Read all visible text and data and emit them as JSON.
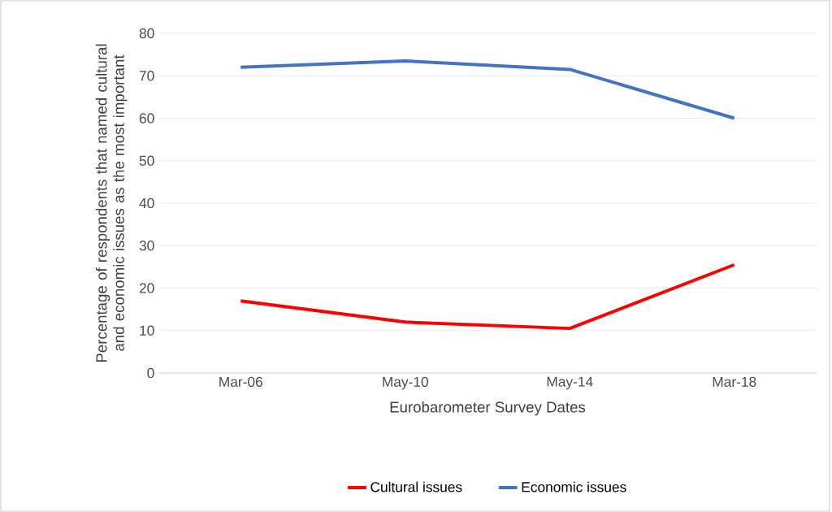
{
  "chart_data": {
    "type": "line",
    "xlabel": "Eurobarometer Survey Dates",
    "ylabel": "Percentage of respondents that named cultural and economic issues as the most important",
    "categories": [
      "Mar-06",
      "May-10",
      "May-14",
      "Mar-18"
    ],
    "series": [
      {
        "name": "Cultural issues",
        "color": "#ff0000",
        "values": [
          17,
          12,
          10.5,
          25.5
        ]
      },
      {
        "name": "Economic issues",
        "color": "#4472c4",
        "values": [
          72,
          73.5,
          71.5,
          60
        ]
      }
    ],
    "ylim": [
      0,
      80
    ],
    "yticks": [
      0,
      10,
      20,
      30,
      40,
      50,
      60,
      70,
      80
    ],
    "grid": "y",
    "legend": "bottom"
  }
}
